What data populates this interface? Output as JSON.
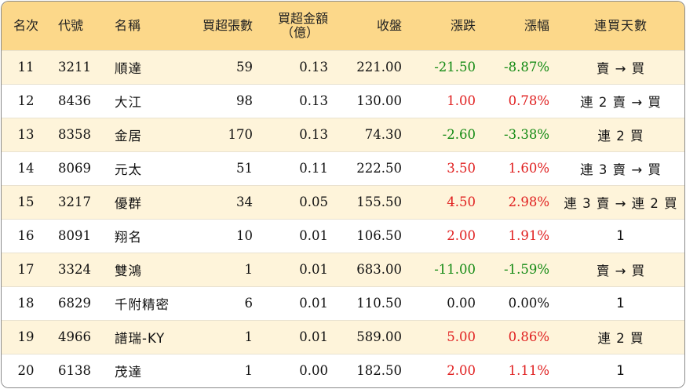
{
  "columns": {
    "rank": "名次",
    "code": "代號",
    "name": "名稱",
    "net_buy_lots": "買超張數",
    "net_buy_amount_line1": "買超金額",
    "net_buy_amount_line2": "（億）",
    "close": "收盤",
    "change": "漲跌",
    "change_pct": "漲幅",
    "streak": "連買天數"
  },
  "colors": {
    "header_bg": "#fcd88a",
    "row_alt_bg": "#fef4da",
    "up": "#e02020",
    "down": "#138a13"
  },
  "rows": [
    {
      "rank": "11",
      "code": "3211",
      "name": "順達",
      "lots": "59",
      "amount": "0.13",
      "close": "221.00",
      "change": "-21.50",
      "pct": "-8.87%",
      "dir": "down",
      "streak": "賣 → 買"
    },
    {
      "rank": "12",
      "code": "8436",
      "name": "大江",
      "lots": "98",
      "amount": "0.13",
      "close": "130.00",
      "change": "1.00",
      "pct": "0.78%",
      "dir": "up",
      "streak": "連 2 賣 → 買"
    },
    {
      "rank": "13",
      "code": "8358",
      "name": "金居",
      "lots": "170",
      "amount": "0.13",
      "close": "74.30",
      "change": "-2.60",
      "pct": "-3.38%",
      "dir": "down",
      "streak": "連 2 買"
    },
    {
      "rank": "14",
      "code": "8069",
      "name": "元太",
      "lots": "51",
      "amount": "0.11",
      "close": "222.50",
      "change": "3.50",
      "pct": "1.60%",
      "dir": "up",
      "streak": "連 3 賣 → 買"
    },
    {
      "rank": "15",
      "code": "3217",
      "name": "優群",
      "lots": "34",
      "amount": "0.05",
      "close": "155.50",
      "change": "4.50",
      "pct": "2.98%",
      "dir": "up",
      "streak": "連 3 賣 → 連 2 買"
    },
    {
      "rank": "16",
      "code": "8091",
      "name": "翔名",
      "lots": "10",
      "amount": "0.01",
      "close": "106.50",
      "change": "2.00",
      "pct": "1.91%",
      "dir": "up",
      "streak": "1"
    },
    {
      "rank": "17",
      "code": "3324",
      "name": "雙鴻",
      "lots": "1",
      "amount": "0.01",
      "close": "683.00",
      "change": "-11.00",
      "pct": "-1.59%",
      "dir": "down",
      "streak": "賣 → 買"
    },
    {
      "rank": "18",
      "code": "6829",
      "name": "千附精密",
      "lots": "6",
      "amount": "0.01",
      "close": "110.50",
      "change": "0.00",
      "pct": "0.00%",
      "dir": "flat",
      "streak": "1"
    },
    {
      "rank": "19",
      "code": "4966",
      "name": "譜瑞-KY",
      "lots": "1",
      "amount": "0.01",
      "close": "589.00",
      "change": "5.00",
      "pct": "0.86%",
      "dir": "up",
      "streak": "連 2 買"
    },
    {
      "rank": "20",
      "code": "6138",
      "name": "茂達",
      "lots": "1",
      "amount": "0.00",
      "close": "182.50",
      "change": "2.00",
      "pct": "1.11%",
      "dir": "up",
      "streak": "1"
    }
  ]
}
